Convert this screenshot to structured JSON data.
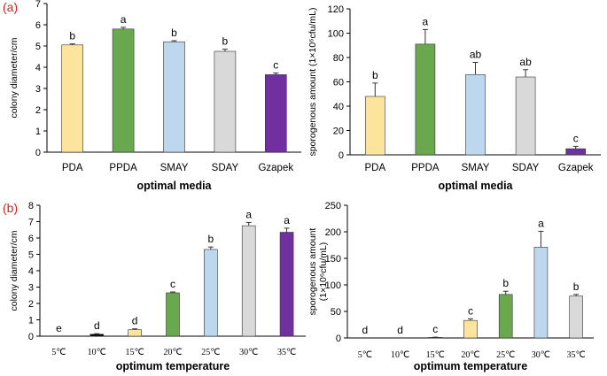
{
  "panel_labels": {
    "a": "(a)",
    "b": "(b)"
  },
  "chart_data": [
    {
      "type": "bar",
      "panel": "(a)",
      "title": "",
      "xlabel": "optimal media",
      "ylabel": "colony diameter/cm",
      "ylim": [
        0,
        7
      ],
      "yticks": [
        0,
        1,
        2,
        3,
        4,
        5,
        6,
        7
      ],
      "categories": [
        "PDA",
        "PPDA",
        "SMAY",
        "SDAY",
        "Gzapek"
      ],
      "values": [
        5.05,
        5.8,
        5.2,
        4.75,
        3.65
      ],
      "errors": [
        0.05,
        0.08,
        0.05,
        0.1,
        0.08
      ],
      "significance": [
        "b",
        "a",
        "b",
        "b",
        "c"
      ],
      "colors": [
        "#fde49c",
        "#6aa84f",
        "#bdd7ee",
        "#d9d9d9",
        "#7030a0"
      ]
    },
    {
      "type": "bar",
      "panel": "(a)",
      "title": "",
      "xlabel": "optimal media",
      "ylabel": "sporogenous amount (1×10⁶cfu/mL)",
      "ylim": [
        0,
        120
      ],
      "yticks": [
        0,
        20,
        40,
        60,
        80,
        100,
        120
      ],
      "categories": [
        "PDA",
        "PPDA",
        "SMAY",
        "SDAY",
        "Gzapek"
      ],
      "values": [
        48,
        91,
        66,
        64,
        5
      ],
      "errors": [
        11,
        12,
        10,
        6,
        2
      ],
      "significance": [
        "b",
        "a",
        "ab",
        "ab",
        "c"
      ],
      "colors": [
        "#fde49c",
        "#6aa84f",
        "#bdd7ee",
        "#d9d9d9",
        "#7030a0"
      ]
    },
    {
      "type": "bar",
      "panel": "(b)",
      "title": "",
      "xlabel": "optimum temperature",
      "ylabel": "colony diameter/cm",
      "ylim": [
        0,
        8
      ],
      "yticks": [
        0,
        1,
        2,
        3,
        4,
        5,
        6,
        7,
        8
      ],
      "categories": [
        "5℃",
        "10℃",
        "15℃",
        "20℃",
        "25℃",
        "30℃",
        "35℃"
      ],
      "values": [
        0,
        0.12,
        0.4,
        2.65,
        5.3,
        6.75,
        6.35
      ],
      "errors": [
        0,
        0.03,
        0.05,
        0.05,
        0.15,
        0.2,
        0.25
      ],
      "significance": [
        "e",
        "d",
        "d",
        "c",
        "b",
        "a",
        "a"
      ],
      "colors": [
        "#000000",
        "#000000",
        "#fde49c",
        "#6aa84f",
        "#bdd7ee",
        "#d9d9d9",
        "#7030a0"
      ]
    },
    {
      "type": "bar",
      "panel": "(b)",
      "title": "",
      "xlabel": "optimum temperature",
      "ylabel": "sporogenous amount",
      "ylabel2": "(1×10⁶cfu/mL)",
      "ylim": [
        0,
        250
      ],
      "yticks": [
        0,
        50,
        100,
        150,
        200,
        250
      ],
      "categories": [
        "5℃",
        "10℃",
        "15℃",
        "20℃",
        "25℃",
        "30℃",
        "35℃"
      ],
      "values": [
        0,
        0,
        1,
        33,
        82,
        171,
        79
      ],
      "errors": [
        0,
        0,
        0.5,
        3,
        6,
        30,
        3
      ],
      "significance": [
        "d",
        "d",
        "c",
        "c",
        "b",
        "a",
        "b"
      ],
      "colors": [
        "#000000",
        "#000000",
        "#000000",
        "#fde49c",
        "#6aa84f",
        "#bdd7ee",
        "#d9d9d9"
      ]
    }
  ]
}
